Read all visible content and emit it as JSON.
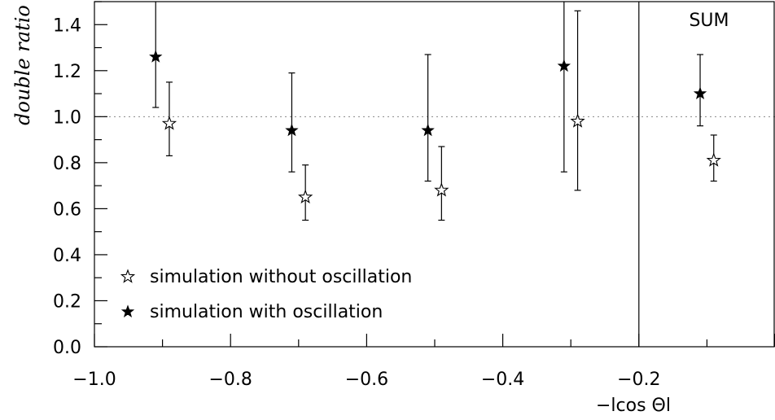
{
  "chart_data": {
    "type": "scatter",
    "ylabel": "double ratio",
    "xlabel": "−lcos Θl",
    "annotation": "SUM",
    "xlim": [
      -1.0,
      0.0
    ],
    "ylim": [
      0.0,
      1.5
    ],
    "x_ticks": [
      -1.0,
      -0.8,
      -0.6,
      -0.4,
      -0.2
    ],
    "x_tick_labels": [
      "−1.0",
      "−0.8",
      "−0.6",
      "−0.4",
      "−0.2"
    ],
    "y_ticks": [
      0.0,
      0.2,
      0.4,
      0.6,
      0.8,
      1.0,
      1.2,
      1.4
    ],
    "y_tick_labels": [
      "0.0",
      "0.2",
      "0.4",
      "0.6",
      "0.8",
      "1.0",
      "1.2",
      "1.4"
    ],
    "reference_line": 1.0,
    "separator_x": -0.2,
    "legend": {
      "placement": "bottom-left",
      "entries": [
        {
          "label": "simulation without oscillation",
          "marker": "open-star"
        },
        {
          "label": "simulation with oscillation",
          "marker": "filled-star"
        }
      ]
    },
    "series": [
      {
        "marker": "filled-star",
        "points": [
          {
            "x": -0.91,
            "y": 1.26,
            "ylow": 1.04,
            "yhigh": 1.5
          },
          {
            "x": -0.71,
            "y": 0.94,
            "ylow": 0.76,
            "yhigh": 1.19
          },
          {
            "x": -0.51,
            "y": 0.94,
            "ylow": 0.72,
            "yhigh": 1.27
          },
          {
            "x": -0.31,
            "y": 1.22,
            "ylow": 0.76,
            "yhigh": 1.5
          },
          {
            "x": -0.11,
            "y": 1.1,
            "ylow": 0.96,
            "yhigh": 1.27
          }
        ]
      },
      {
        "marker": "open-star",
        "points": [
          {
            "x": -0.89,
            "y": 0.97,
            "ylow": 0.83,
            "yhigh": 1.15
          },
          {
            "x": -0.69,
            "y": 0.65,
            "ylow": 0.55,
            "yhigh": 0.79
          },
          {
            "x": -0.49,
            "y": 0.68,
            "ylow": 0.55,
            "yhigh": 0.87
          },
          {
            "x": -0.29,
            "y": 0.98,
            "ylow": 0.68,
            "yhigh": 1.46
          },
          {
            "x": -0.09,
            "y": 0.81,
            "ylow": 0.72,
            "yhigh": 0.92
          }
        ]
      }
    ]
  }
}
